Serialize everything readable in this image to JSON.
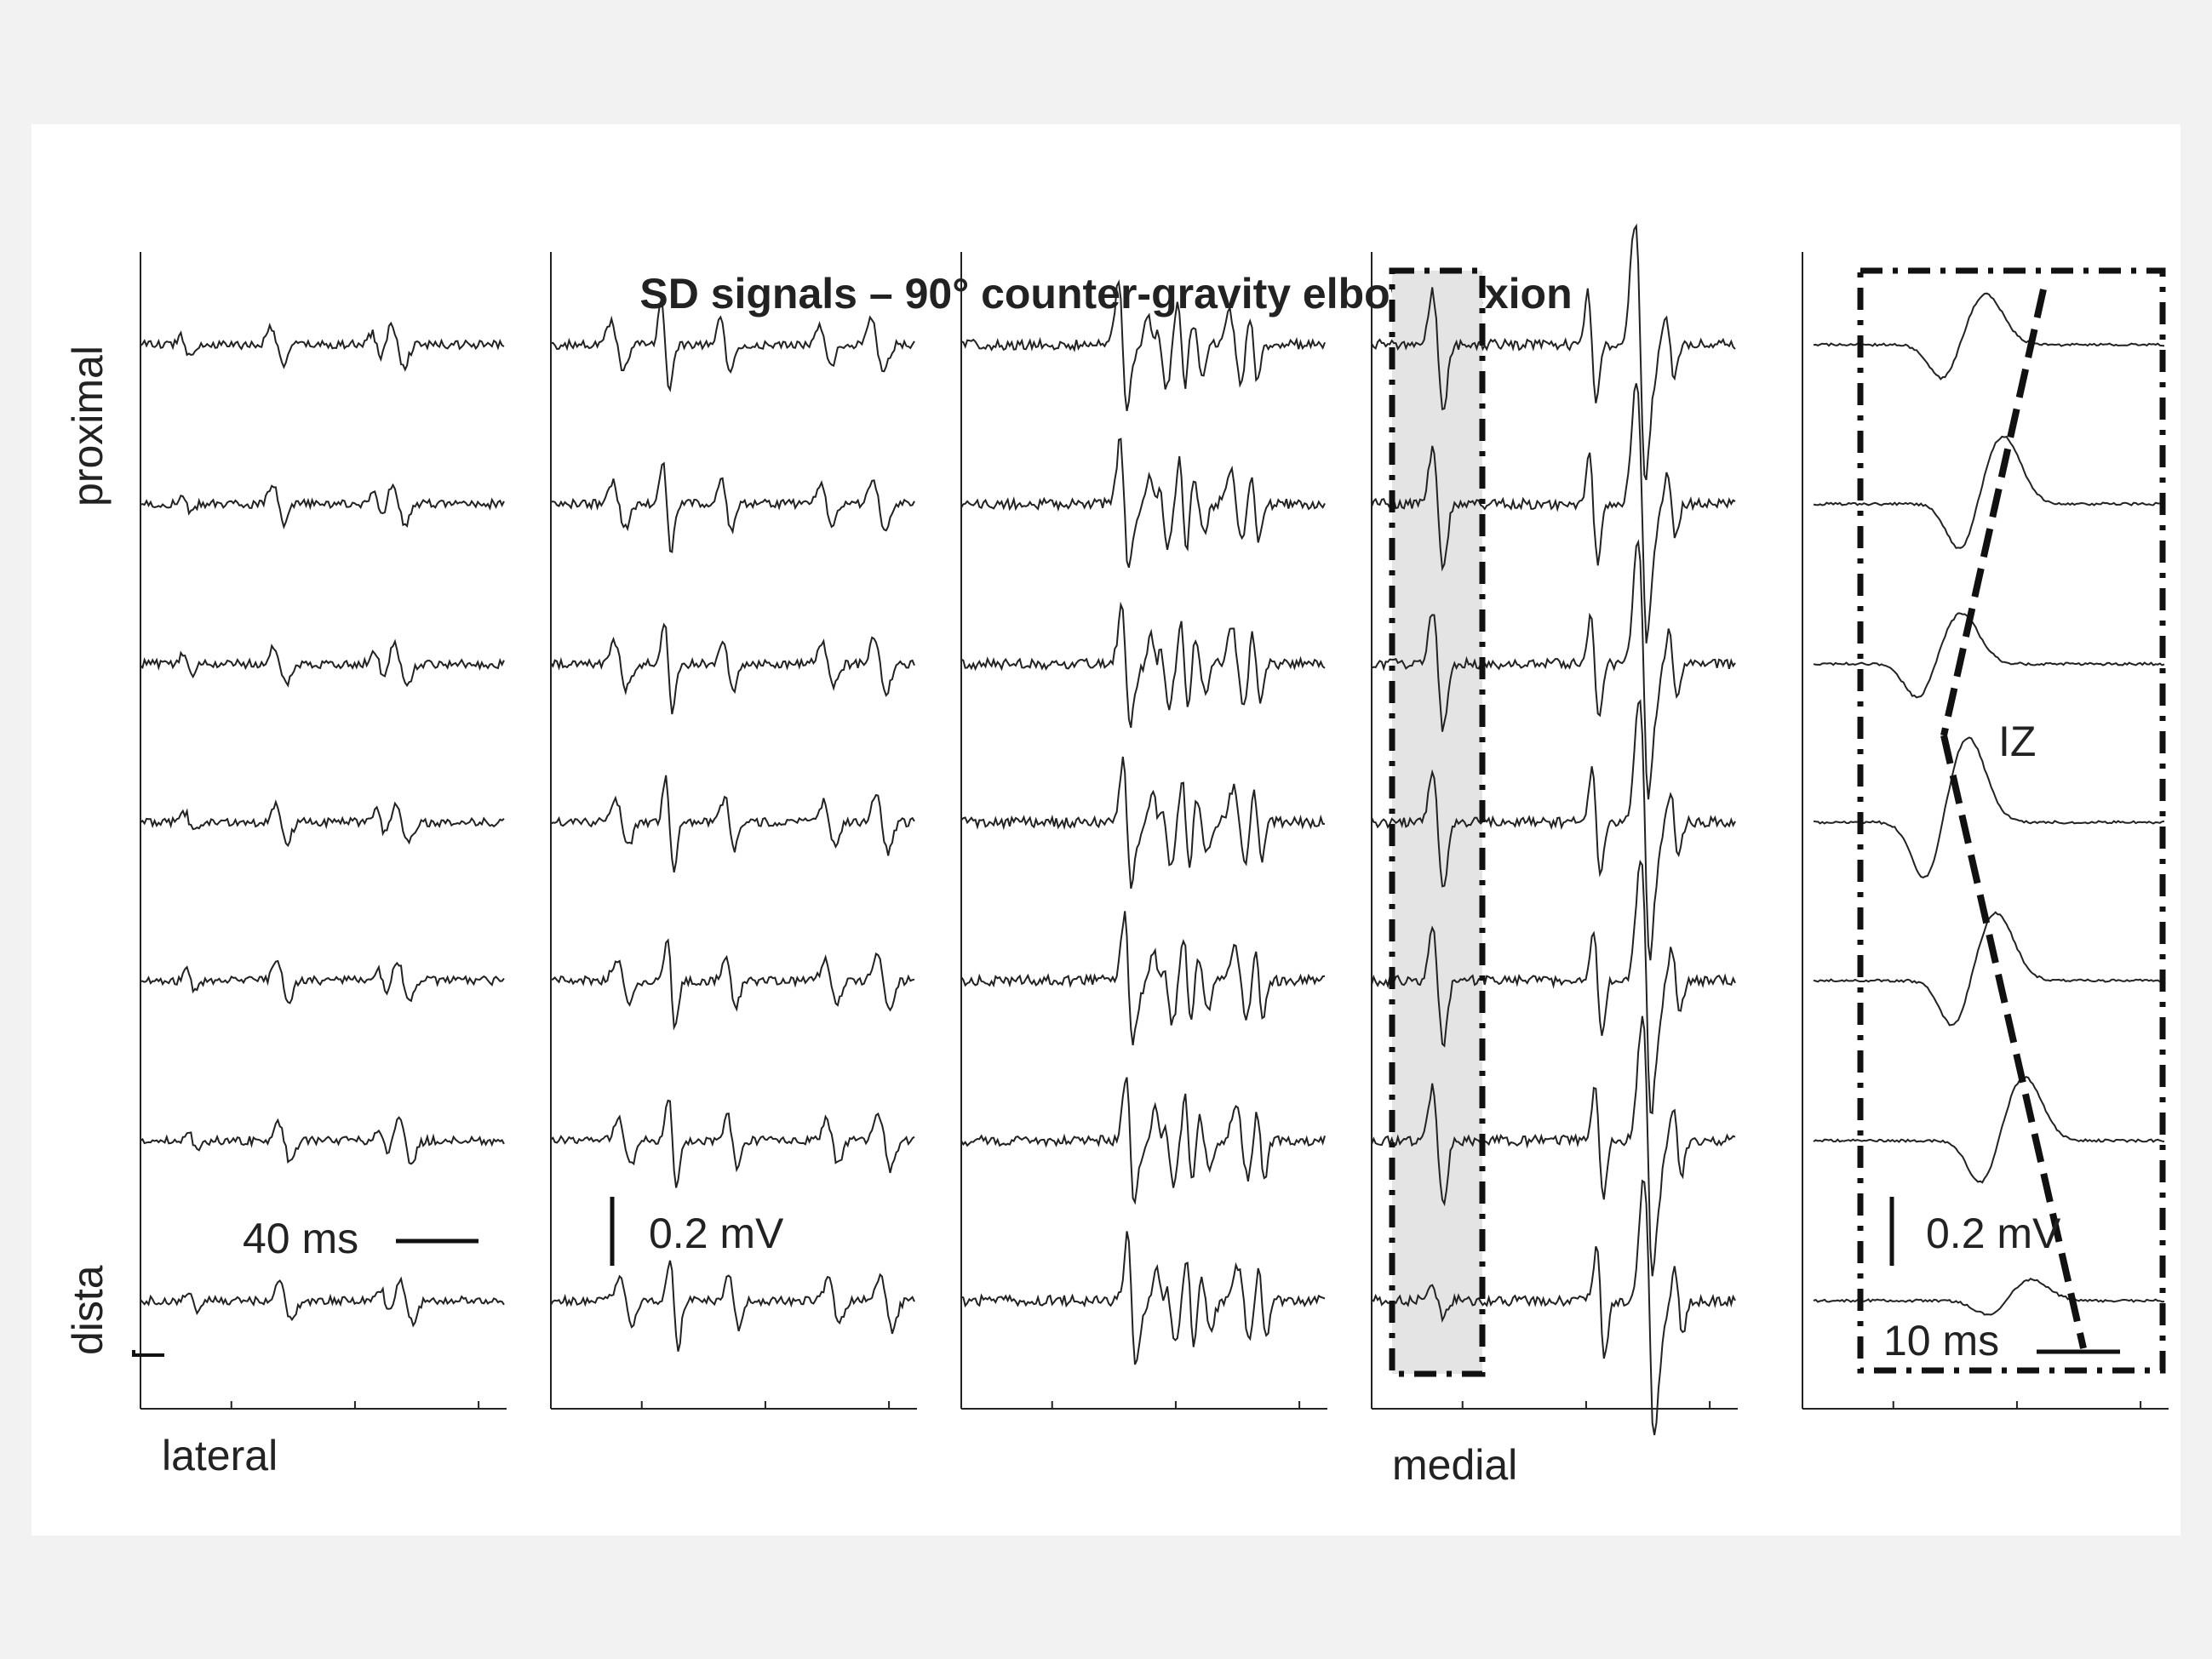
{
  "title": "SD signals – 90° counter-gravity elbow flexion",
  "labels": {
    "proximal": "proximal",
    "distal": "dista",
    "lateral": "lateral",
    "medial": "medial",
    "iz": "IZ"
  },
  "scale_bars": {
    "time_main": "40 ms",
    "amp_main": "0.2 mV",
    "amp_zoom": "0.2 mV",
    "time_zoom": "10 ms"
  },
  "colors": {
    "trace": "#222222",
    "highlight": "#e4e4e4",
    "background": "#ffffff",
    "page": "#f2f2f2"
  },
  "chart_data": {
    "type": "line",
    "title": "SD signals – 90° counter-gravity elbow flexion",
    "columns": 4,
    "rows": 7,
    "row_labels": {
      "top": "proximal",
      "bottom": "dista"
    },
    "column_labels": {
      "first": "lateral",
      "fourth": "medial"
    },
    "time_scale_bar": "40 ms",
    "amplitude_scale_bar": "0.2 mV",
    "highlighted_column": 4,
    "grid": false,
    "zoom_panel": {
      "source": "highlighted window of column 4",
      "channels": 7,
      "time_scale_bar": "10 ms",
      "amplitude_scale_bar": "0.2 mV",
      "annotation": "IZ"
    }
  }
}
